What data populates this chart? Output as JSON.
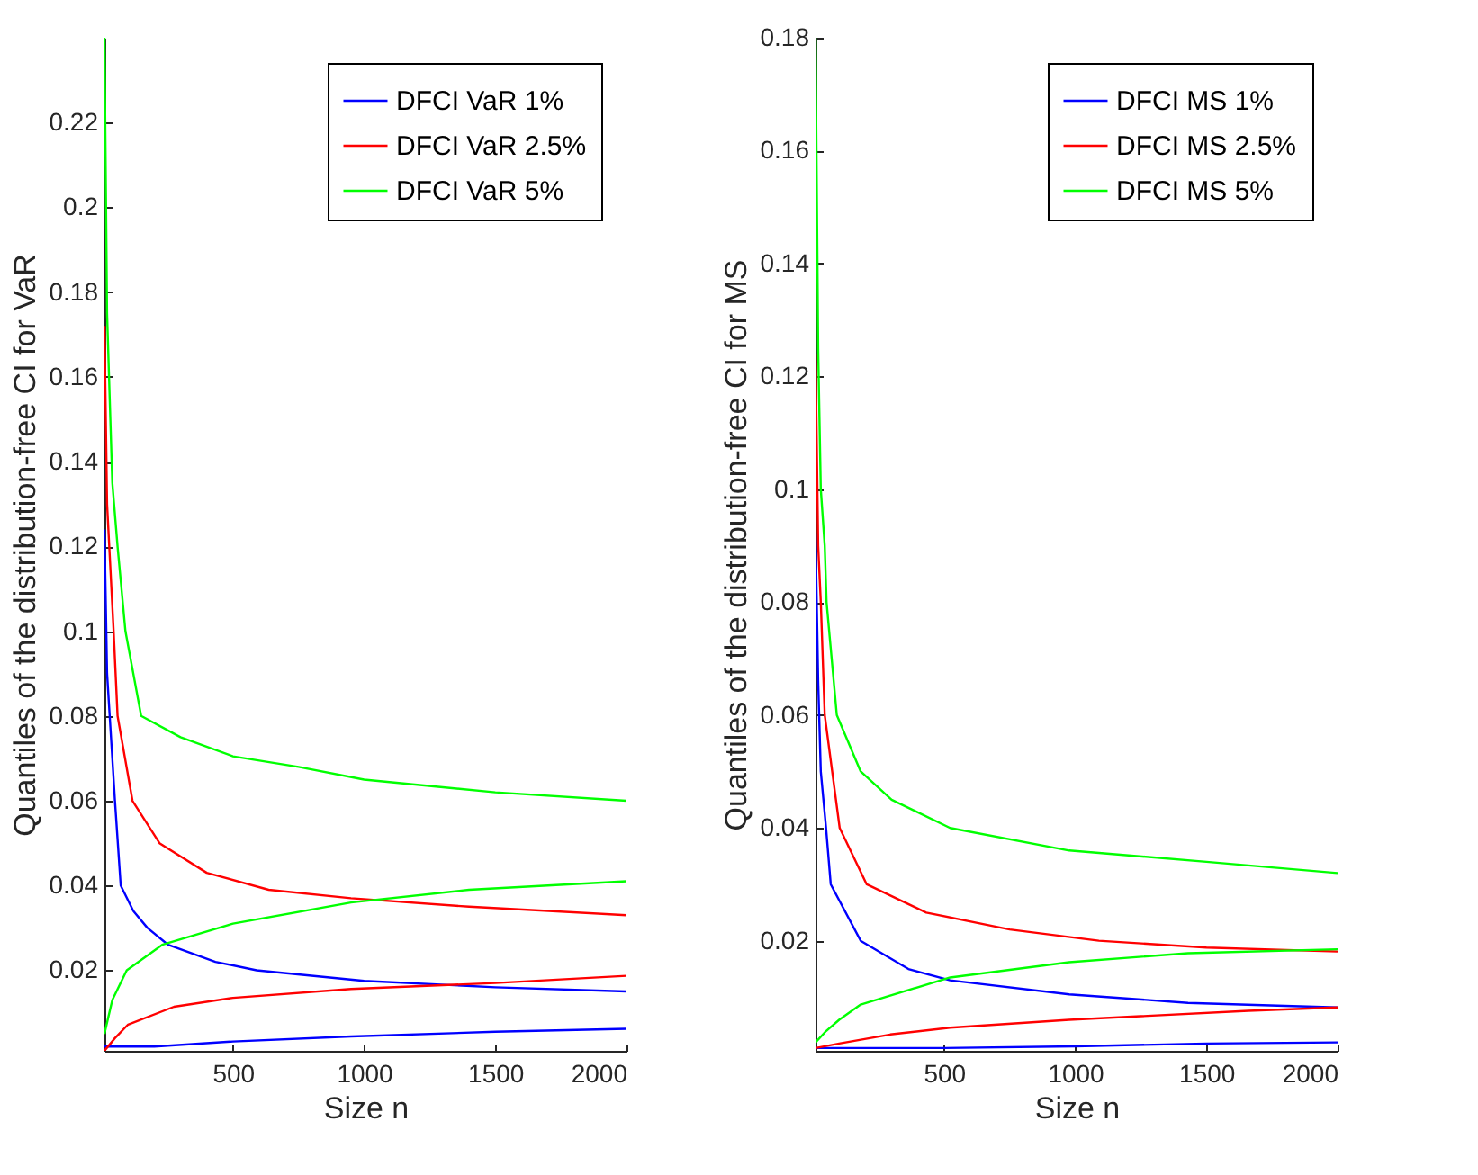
{
  "chart_data": [
    {
      "type": "line",
      "xlabel": "Size n",
      "ylabel": "Quantiles of the distribution-free CI for VaR",
      "xlim": [
        10,
        2000
      ],
      "ylim": [
        0.001,
        0.24
      ],
      "xticks": [
        500,
        1000,
        1500,
        2000
      ],
      "yticks": [
        0.02,
        0.04,
        0.06,
        0.08,
        0.1,
        0.12,
        0.14,
        0.16,
        0.18,
        0.2,
        0.22
      ],
      "grid": false,
      "legend": "top right",
      "line_style": "solid",
      "series": [
        {
          "name": "DFCI VaR 1%",
          "color": "#0000ff",
          "x": [
            10,
            20,
            50,
            72,
            120,
            174,
            253,
            433,
            590,
            1000,
            1500,
            2000
          ],
          "values": [
            0.124,
            0.09,
            0.06,
            0.04,
            0.034,
            0.03,
            0.026,
            0.022,
            0.02,
            0.0175,
            0.016,
            0.015
          ]
        },
        {
          "name": "DFCI VaR 2.5%",
          "color": "#ff0000",
          "x": [
            10,
            20,
            45,
            60,
            117,
            220,
            400,
            636,
            950,
            1400,
            2000
          ],
          "values": [
            0.172,
            0.13,
            0.1,
            0.08,
            0.06,
            0.05,
            0.043,
            0.039,
            0.037,
            0.035,
            0.033
          ]
        },
        {
          "name": "DFCI VaR 5%",
          "color": "#00ff00",
          "x": [
            10,
            20,
            40,
            60,
            90,
            150,
            300,
            500,
            750,
            1000,
            1500,
            2000
          ],
          "values": [
            0.24,
            0.175,
            0.135,
            0.12,
            0.1,
            0.08,
            0.075,
            0.0705,
            0.068,
            0.065,
            0.062,
            0.06
          ]
        },
        {
          "color": "#0000ff",
          "x": [
            10,
            200,
            500,
            950,
            1500,
            2000
          ],
          "values": [
            0.002,
            0.002,
            0.0032,
            0.0044,
            0.0055,
            0.0062
          ]
        },
        {
          "color": "#ff0000",
          "x": [
            10,
            50,
            100,
            275,
            500,
            950,
            1500,
            2000
          ],
          "values": [
            0.001,
            0.004,
            0.0072,
            0.0114,
            0.0135,
            0.0156,
            0.017,
            0.0187
          ]
        },
        {
          "color": "#00ff00",
          "x": [
            10,
            40,
            95,
            230,
            500,
            950,
            1400,
            2000
          ],
          "values": [
            0.005,
            0.013,
            0.02,
            0.026,
            0.031,
            0.036,
            0.039,
            0.041
          ]
        }
      ]
    },
    {
      "type": "line",
      "xlabel": "Size n",
      "ylabel": "Quantiles of the distribution-free CI for MS",
      "xlim": [
        10,
        2000
      ],
      "ylim": [
        0.0005,
        0.18
      ],
      "xticks": [
        500,
        1000,
        1500,
        2000
      ],
      "yticks": [
        0.02,
        0.04,
        0.06,
        0.08,
        0.1,
        0.12,
        0.14,
        0.16,
        0.18
      ],
      "grid": false,
      "legend": "top right",
      "line_style": "solid",
      "series": [
        {
          "name": "DFCI MS 1%",
          "color": "#0000ff",
          "x": [
            10,
            20,
            30,
            50,
            68,
            182,
            364,
            523,
            977,
            1430,
            2000
          ],
          "values": [
            0.092,
            0.066,
            0.05,
            0.04,
            0.03,
            0.02,
            0.015,
            0.013,
            0.0105,
            0.009,
            0.0082
          ]
        },
        {
          "name": "DFCI MS 2.5%",
          "color": "#ff0000",
          "x": [
            10,
            20,
            30,
            45,
            102,
            205,
            432,
            750,
            1090,
            1500,
            2000
          ],
          "values": [
            0.124,
            0.09,
            0.08,
            0.06,
            0.04,
            0.03,
            0.025,
            0.022,
            0.02,
            0.0188,
            0.0181
          ]
        },
        {
          "name": "DFCI MS 5%",
          "color": "#00ff00",
          "x": [
            10,
            20,
            30,
            45,
            52,
            91,
            182,
            300,
            523,
            977,
            1500,
            2000
          ],
          "values": [
            0.18,
            0.125,
            0.1,
            0.09,
            0.08,
            0.06,
            0.05,
            0.045,
            0.04,
            0.036,
            0.034,
            0.032
          ]
        },
        {
          "color": "#0000ff",
          "x": [
            10,
            500,
            1000,
            1500,
            2000
          ],
          "values": [
            0.001,
            0.001,
            0.0013,
            0.0018,
            0.002
          ]
        },
        {
          "color": "#ff0000",
          "x": [
            10,
            100,
            295,
            523,
            977,
            1660,
            2000
          ],
          "values": [
            0.001,
            0.0018,
            0.0034,
            0.0046,
            0.006,
            0.0076,
            0.0082
          ]
        },
        {
          "color": "#00ff00",
          "x": [
            10,
            50,
            100,
            182,
            523,
            977,
            1430,
            2000
          ],
          "values": [
            0.002,
            0.004,
            0.006,
            0.0087,
            0.0135,
            0.0162,
            0.0178,
            0.0185
          ]
        }
      ]
    }
  ]
}
